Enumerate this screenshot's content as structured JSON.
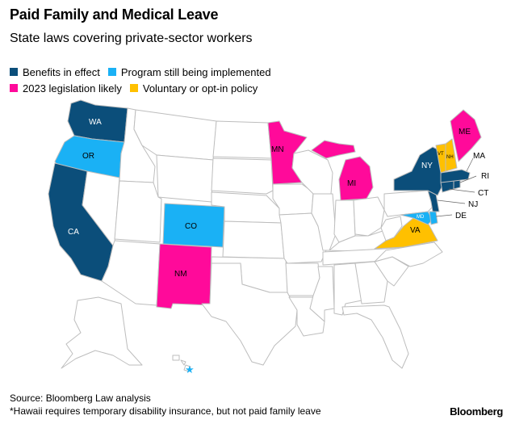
{
  "title": "Paid Family and Medical Leave",
  "subtitle": "State laws covering private-sector workers",
  "colors": {
    "benefits": "#0b4e7a",
    "implementing": "#1ab1f5",
    "likely": "#ff0a9a",
    "voluntary": "#ffc000",
    "none": "#ffffff",
    "border": "#bdbdbd"
  },
  "legend": [
    {
      "key": "benefits",
      "label": "Benefits in effect"
    },
    {
      "key": "implementing",
      "label": "Program still being implemented"
    },
    {
      "key": "likely",
      "label": "2023 legislation likely"
    },
    {
      "key": "voluntary",
      "label": "Voluntary or opt-in policy"
    }
  ],
  "labels": {
    "WA": "WA",
    "OR": "OR",
    "CA": "CA",
    "CO": "CO",
    "NM": "NM",
    "MN": "MN",
    "MI": "MI",
    "NY": "NY",
    "ME": "ME",
    "VA": "VA",
    "VT": "VT",
    "NH": "NH",
    "MD": "MD",
    "MA": "MA",
    "RI": "RI",
    "CT": "CT",
    "NJ": "NJ",
    "DE": "DE"
  },
  "hawaii_marker": "★",
  "source": "Source: Bloomberg Law analysis",
  "note": "*Hawaii requires temporary disability insurance, but not paid family leave",
  "brand": "Bloomberg"
}
